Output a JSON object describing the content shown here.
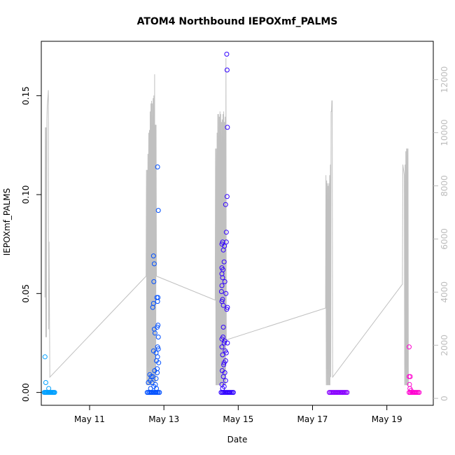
{
  "chart_data": {
    "type": "scatter",
    "title": "ATOM4 Northbound IEPOXmf_PALMS",
    "xlabel": "Date",
    "ylabel": "IEPOXmf_PALMS",
    "x_unit": "day of May",
    "xlim": [
      9.7,
      20.25
    ],
    "ylim": [
      -0.0065,
      0.1775
    ],
    "x_ticks": [
      {
        "value": 11,
        "label": "May 11"
      },
      {
        "value": 13,
        "label": "May 13"
      },
      {
        "value": 15,
        "label": "May 15"
      },
      {
        "value": 17,
        "label": "May 17"
      },
      {
        "value": 19,
        "label": "May 19"
      }
    ],
    "y_ticks": [
      {
        "value": 0.0,
        "label": "0.00"
      },
      {
        "value": 0.05,
        "label": "0.05"
      },
      {
        "value": 0.1,
        "label": "0.10"
      },
      {
        "value": 0.15,
        "label": "0.15"
      }
    ],
    "y2_ticks": [
      {
        "value": 0,
        "label": "0"
      },
      {
        "value": 2000,
        "label": "2000"
      },
      {
        "value": 4000,
        "label": "4000"
      },
      {
        "value": 6000,
        "label": "6000"
      },
      {
        "value": 8000,
        "label": "8000"
      },
      {
        "value": 10000,
        "label": "10000"
      },
      {
        "value": 12000,
        "label": "12000"
      }
    ],
    "y2lim": [
      -260,
      13440
    ],
    "grid": false,
    "legend": "none",
    "colors": {
      "flight_1": "#00a0ff",
      "flight_2": "#0050ff",
      "flight_3": "#3000ff",
      "flight_4": "#8800ff",
      "flight_5": "#ff00d0",
      "altitude_line": "#c0c0c0",
      "right_axis": "#bdbdbd"
    },
    "series": [
      {
        "color": "#00a0ff",
        "points": [
          [
            9.8,
            0.018
          ],
          [
            9.82,
            0.005
          ],
          [
            9.9,
            0.002
          ],
          [
            9.78,
            0.0
          ],
          [
            9.8,
            0.0
          ],
          [
            9.82,
            0.0
          ],
          [
            9.84,
            0.0
          ],
          [
            9.86,
            0.0
          ],
          [
            9.88,
            0.0
          ],
          [
            9.9,
            0.0
          ],
          [
            9.92,
            0.0
          ],
          [
            9.94,
            0.0
          ],
          [
            9.96,
            0.0
          ],
          [
            9.98,
            0.0
          ],
          [
            10.0,
            0.0
          ],
          [
            10.02,
            0.0
          ],
          [
            10.04,
            0.0
          ],
          [
            10.06,
            0.0
          ]
        ]
      },
      {
        "color": "#0050ff",
        "points": [
          [
            12.83,
            0.114
          ],
          [
            12.85,
            0.092
          ],
          [
            12.72,
            0.069
          ],
          [
            12.74,
            0.065
          ],
          [
            12.73,
            0.056
          ],
          [
            12.81,
            0.048
          ],
          [
            12.84,
            0.048
          ],
          [
            12.83,
            0.046
          ],
          [
            12.72,
            0.045
          ],
          [
            12.7,
            0.043
          ],
          [
            12.84,
            0.034
          ],
          [
            12.82,
            0.033
          ],
          [
            12.74,
            0.032
          ],
          [
            12.76,
            0.03
          ],
          [
            12.85,
            0.028
          ],
          [
            12.83,
            0.023
          ],
          [
            12.85,
            0.022
          ],
          [
            12.72,
            0.021
          ],
          [
            12.79,
            0.02
          ],
          [
            12.83,
            0.018
          ],
          [
            12.8,
            0.016
          ],
          [
            12.86,
            0.015
          ],
          [
            12.82,
            0.012
          ],
          [
            12.75,
            0.011
          ],
          [
            12.82,
            0.01
          ],
          [
            12.62,
            0.009
          ],
          [
            12.66,
            0.008
          ],
          [
            12.7,
            0.008
          ],
          [
            12.79,
            0.007
          ],
          [
            12.63,
            0.006
          ],
          [
            12.68,
            0.005
          ],
          [
            12.58,
            0.005
          ],
          [
            12.77,
            0.004
          ],
          [
            12.73,
            0.003
          ],
          [
            12.64,
            0.002
          ],
          [
            12.8,
            0.002
          ],
          [
            12.55,
            0.0
          ],
          [
            12.58,
            0.0
          ],
          [
            12.61,
            0.0
          ],
          [
            12.64,
            0.0
          ],
          [
            12.67,
            0.0
          ],
          [
            12.7,
            0.0
          ],
          [
            12.73,
            0.0
          ],
          [
            12.76,
            0.0
          ],
          [
            12.79,
            0.0
          ],
          [
            12.82,
            0.0
          ],
          [
            12.85,
            0.0
          ],
          [
            12.88,
            0.0
          ]
        ]
      },
      {
        "color": "#3000ff",
        "points": [
          [
            14.69,
            0.171
          ],
          [
            14.7,
            0.163
          ],
          [
            14.71,
            0.134
          ],
          [
            14.7,
            0.099
          ],
          [
            14.66,
            0.095
          ],
          [
            14.68,
            0.081
          ],
          [
            14.68,
            0.076
          ],
          [
            14.58,
            0.076
          ],
          [
            14.63,
            0.074
          ],
          [
            14.56,
            0.075
          ],
          [
            14.6,
            0.072
          ],
          [
            14.62,
            0.066
          ],
          [
            14.56,
            0.063
          ],
          [
            14.59,
            0.062
          ],
          [
            14.56,
            0.06
          ],
          [
            14.58,
            0.058
          ],
          [
            14.64,
            0.056
          ],
          [
            14.56,
            0.054
          ],
          [
            14.55,
            0.051
          ],
          [
            14.67,
            0.05
          ],
          [
            14.58,
            0.047
          ],
          [
            14.56,
            0.046
          ],
          [
            14.6,
            0.044
          ],
          [
            14.71,
            0.043
          ],
          [
            14.69,
            0.042
          ],
          [
            14.6,
            0.033
          ],
          [
            14.59,
            0.028
          ],
          [
            14.56,
            0.027
          ],
          [
            14.64,
            0.026
          ],
          [
            14.62,
            0.025
          ],
          [
            14.71,
            0.025
          ],
          [
            14.56,
            0.023
          ],
          [
            14.65,
            0.021
          ],
          [
            14.68,
            0.02
          ],
          [
            14.58,
            0.019
          ],
          [
            14.66,
            0.016
          ],
          [
            14.62,
            0.015
          ],
          [
            14.61,
            0.014
          ],
          [
            14.57,
            0.011
          ],
          [
            14.64,
            0.01
          ],
          [
            14.6,
            0.008
          ],
          [
            14.66,
            0.006
          ],
          [
            14.56,
            0.004
          ],
          [
            14.62,
            0.003
          ],
          [
            14.58,
            0.002
          ],
          [
            14.54,
            0.0
          ],
          [
            14.57,
            0.0
          ],
          [
            14.6,
            0.0
          ],
          [
            14.63,
            0.0
          ],
          [
            14.66,
            0.0
          ],
          [
            14.69,
            0.0
          ],
          [
            14.72,
            0.0
          ],
          [
            14.75,
            0.0
          ],
          [
            14.78,
            0.0
          ],
          [
            14.81,
            0.0
          ],
          [
            14.84,
            0.0
          ],
          [
            14.87,
            0.0
          ]
        ]
      },
      {
        "color": "#8800ff",
        "points": [
          [
            17.45,
            0.0
          ],
          [
            17.48,
            0.0
          ],
          [
            17.51,
            0.0
          ],
          [
            17.54,
            0.0
          ],
          [
            17.57,
            0.0
          ],
          [
            17.6,
            0.0
          ],
          [
            17.63,
            0.0
          ],
          [
            17.66,
            0.0
          ],
          [
            17.69,
            0.0
          ],
          [
            17.72,
            0.0
          ],
          [
            17.75,
            0.0
          ],
          [
            17.78,
            0.0
          ],
          [
            17.81,
            0.0
          ],
          [
            17.84,
            0.0
          ],
          [
            17.87,
            0.0
          ],
          [
            17.9,
            0.0
          ],
          [
            17.93,
            0.0
          ]
        ]
      },
      {
        "color": "#ff00d0",
        "points": [
          [
            19.6,
            0.023
          ],
          [
            19.6,
            0.008
          ],
          [
            19.63,
            0.008
          ],
          [
            19.61,
            0.004
          ],
          [
            19.62,
            0.002
          ],
          [
            19.65,
            0.001
          ],
          [
            19.6,
            0.0
          ],
          [
            19.63,
            0.0
          ],
          [
            19.66,
            0.0
          ],
          [
            19.69,
            0.0
          ],
          [
            19.72,
            0.0
          ],
          [
            19.75,
            0.0
          ],
          [
            19.78,
            0.0
          ],
          [
            19.81,
            0.0
          ],
          [
            19.84,
            0.0
          ],
          [
            19.87,
            0.0
          ]
        ]
      }
    ],
    "altitude_series": {
      "axis": "right",
      "color": "#c0c0c0",
      "points": [
        [
          9.8,
          3800
        ],
        [
          9.81,
          10200
        ],
        [
          9.82,
          2300
        ],
        [
          9.83,
          10200
        ],
        [
          9.84,
          2300
        ],
        [
          9.85,
          10500
        ],
        [
          9.86,
          11000
        ],
        [
          9.88,
          11400
        ],
        [
          9.89,
          11600
        ],
        [
          9.9,
          2600
        ],
        [
          9.91,
          5900
        ],
        [
          9.93,
          800
        ],
        [
          12.52,
          4600
        ],
        [
          12.53,
          8600
        ],
        [
          12.54,
          500
        ],
        [
          12.55,
          8600
        ],
        [
          12.56,
          500
        ],
        [
          12.57,
          9200
        ],
        [
          12.58,
          500
        ],
        [
          12.59,
          10000
        ],
        [
          12.6,
          500
        ],
        [
          12.61,
          10100
        ],
        [
          12.62,
          500
        ],
        [
          12.63,
          10800
        ],
        [
          12.64,
          500
        ],
        [
          12.65,
          11100
        ],
        [
          12.66,
          500
        ],
        [
          12.67,
          11200
        ],
        [
          12.68,
          500
        ],
        [
          12.69,
          11100
        ],
        [
          12.7,
          600
        ],
        [
          12.71,
          11300
        ],
        [
          12.72,
          500
        ],
        [
          12.73,
          11400
        ],
        [
          12.74,
          600
        ],
        [
          12.75,
          12200
        ],
        [
          12.76,
          600
        ],
        [
          12.77,
          10300
        ],
        [
          12.78,
          600
        ],
        [
          12.79,
          10300
        ],
        [
          12.8,
          4600
        ],
        [
          14.38,
          3700
        ],
        [
          14.39,
          9400
        ],
        [
          14.4,
          500
        ],
        [
          14.41,
          9400
        ],
        [
          14.42,
          500
        ],
        [
          14.43,
          10000
        ],
        [
          14.44,
          500
        ],
        [
          14.45,
          10700
        ],
        [
          14.46,
          500
        ],
        [
          14.47,
          10700
        ],
        [
          14.48,
          500
        ],
        [
          14.49,
          10600
        ],
        [
          14.5,
          500
        ],
        [
          14.51,
          10800
        ],
        [
          14.52,
          500
        ],
        [
          14.53,
          10700
        ],
        [
          14.54,
          500
        ],
        [
          14.55,
          10400
        ],
        [
          14.56,
          500
        ],
        [
          14.57,
          10500
        ],
        [
          14.58,
          500
        ],
        [
          14.59,
          10700
        ],
        [
          14.6,
          500
        ],
        [
          14.61,
          10800
        ],
        [
          14.62,
          500
        ],
        [
          14.63,
          10400
        ],
        [
          14.64,
          500
        ],
        [
          14.65,
          10600
        ],
        [
          14.66,
          500
        ],
        [
          14.67,
          12800
        ],
        [
          14.68,
          2200
        ],
        [
          17.35,
          3400
        ],
        [
          17.36,
          8400
        ],
        [
          17.37,
          500
        ],
        [
          17.38,
          8200
        ],
        [
          17.39,
          500
        ],
        [
          17.4,
          8100
        ],
        [
          17.41,
          500
        ],
        [
          17.42,
          8000
        ],
        [
          17.43,
          500
        ],
        [
          17.44,
          8100
        ],
        [
          17.45,
          500
        ],
        [
          17.46,
          8400
        ],
        [
          17.47,
          500
        ],
        [
          17.48,
          8800
        ],
        [
          17.49,
          800
        ],
        [
          17.5,
          10800
        ],
        [
          17.51,
          10800
        ],
        [
          17.52,
          11200
        ],
        [
          17.53,
          11200
        ],
        [
          17.54,
          800
        ],
        [
          19.42,
          4300
        ],
        [
          19.43,
          8800
        ],
        [
          19.44,
          8700
        ],
        [
          19.45,
          8600
        ],
        [
          19.46,
          8500
        ],
        [
          19.47,
          8400
        ],
        [
          19.48,
          500
        ],
        [
          19.49,
          8800
        ],
        [
          19.5,
          500
        ],
        [
          19.51,
          9300
        ],
        [
          19.52,
          500
        ],
        [
          19.53,
          9400
        ],
        [
          19.54,
          500
        ],
        [
          19.55,
          9400
        ],
        [
          19.56,
          500
        ],
        [
          19.57,
          9400
        ],
        [
          19.58,
          500
        ]
      ]
    }
  }
}
